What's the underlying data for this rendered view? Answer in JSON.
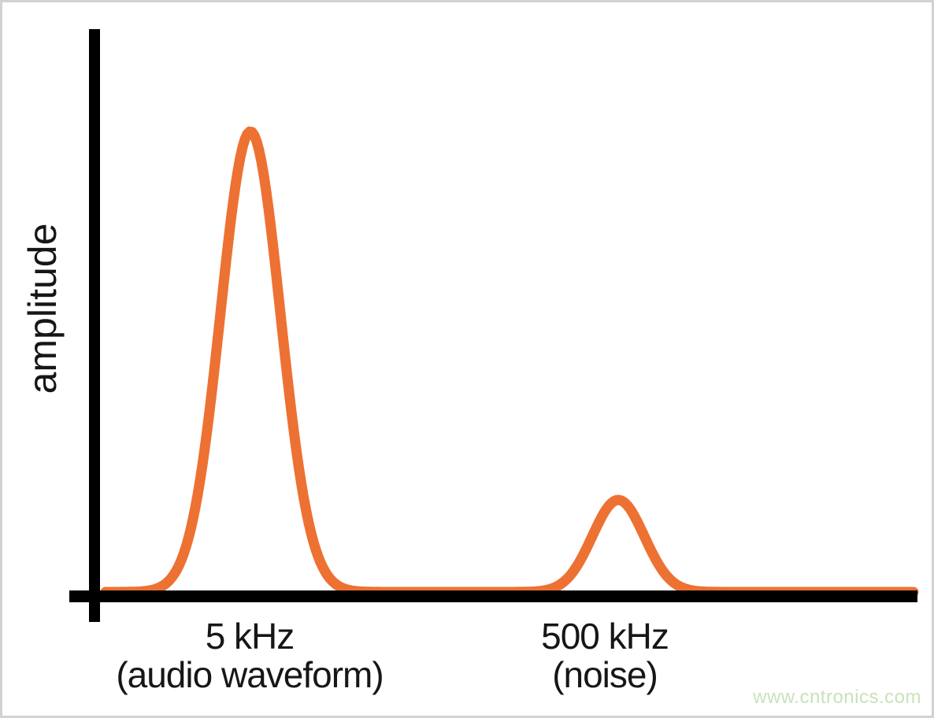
{
  "page": {
    "background": "#ffffff",
    "frame_border_color": "#d2d2d2"
  },
  "chart_data": {
    "type": "line",
    "title": "",
    "xlabel": "",
    "ylabel": "amplitude",
    "grid": false,
    "legend": false,
    "axis_color": "#000000",
    "curve_color": "#ed7132",
    "label_color": "#161616",
    "x_axis_numeric": false,
    "description": "Frequency spectrum sketch with two Gaussian peaks on an unscaled frequency axis",
    "peaks": [
      {
        "label": "5 kHz",
        "annotation": "(audio waveform)",
        "relative_amplitude": 1.0,
        "center_frac": 0.184,
        "sigma_frac": 0.0366
      },
      {
        "label": "500 kHz",
        "annotation": "(noise)",
        "relative_amplitude": 0.2,
        "center_frac": 0.634,
        "sigma_frac": 0.0318
      }
    ]
  },
  "watermark": {
    "text": "www.cntronics.com",
    "color": "#c9e2ba"
  }
}
